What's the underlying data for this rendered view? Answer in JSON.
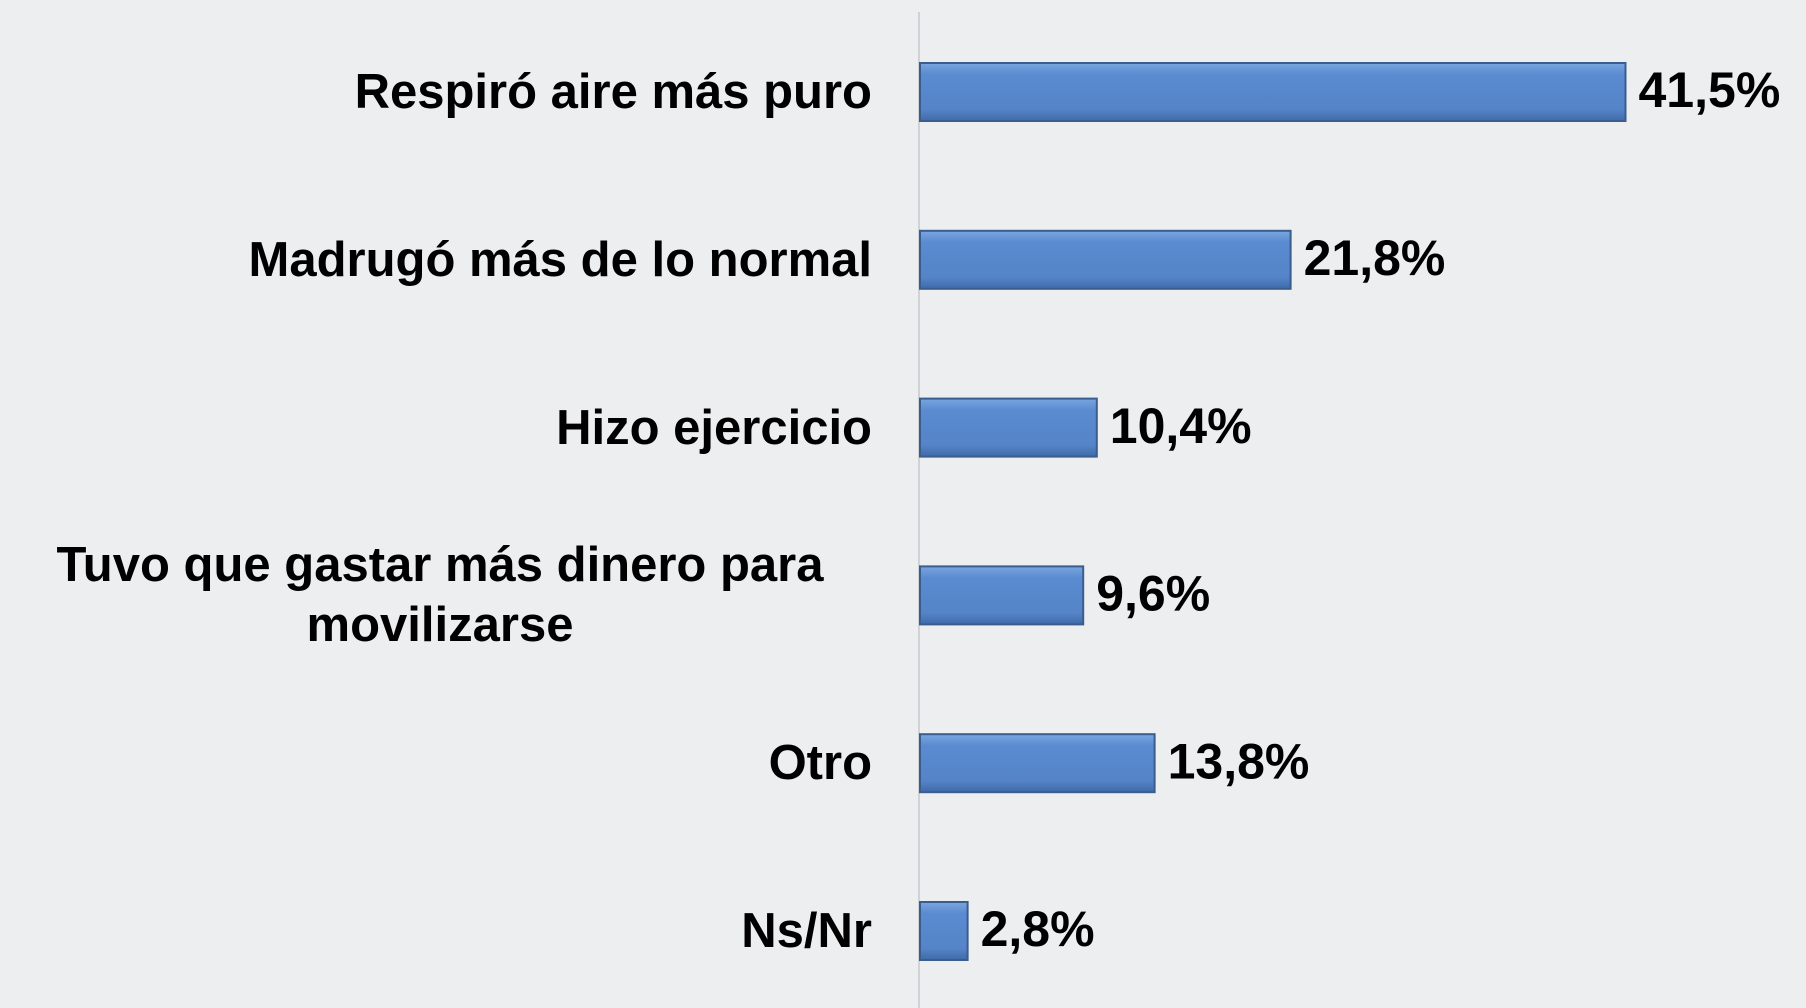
{
  "chart_data": {
    "type": "bar",
    "orientation": "horizontal",
    "categories": [
      "Respiró aire más puro",
      "Madrugó más de lo normal",
      "Hizo ejercicio",
      "Tuvo que gastar más dinero para movilizarse",
      "Otro",
      "Ns/Nr"
    ],
    "values": [
      41.5,
      21.8,
      10.4,
      9.6,
      13.8,
      2.8
    ],
    "value_labels": [
      "41,5%",
      "21,8%",
      "10,4%",
      "9,6%",
      "13,8%",
      "2,8%"
    ],
    "color": "#5a8bd0"
  }
}
